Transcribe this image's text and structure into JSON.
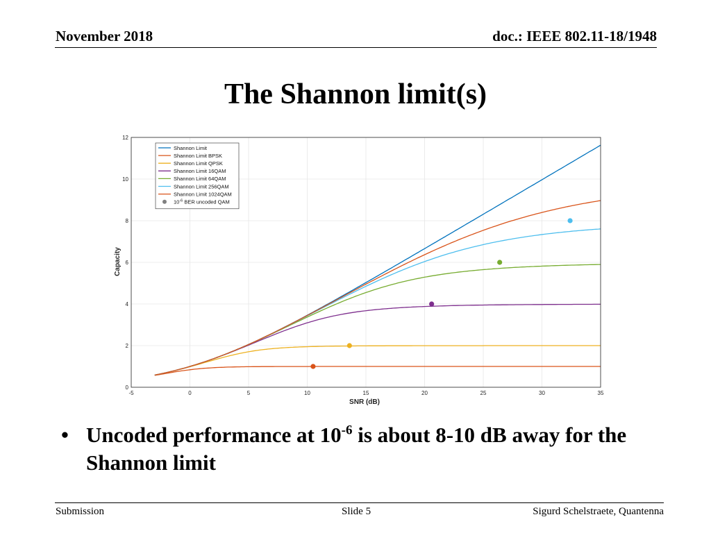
{
  "header": {
    "date": "November 2018",
    "doc": "doc.: IEEE 802.11-18/1948"
  },
  "slide_title": "The Shannon limit(s)",
  "bullet": {
    "symbol": "•",
    "text_before": "Uncoded performance at 10",
    "superscript": "-6",
    "text_after": " is about 8-10 dB away for the Shannon limit"
  },
  "footer": {
    "left": "Submission",
    "center": "Slide 5",
    "right": "Sigurd Schelstraete, Quantenna"
  },
  "colors": {
    "shannon": "#0072BD",
    "bpsk": "#D95319",
    "qpsk": "#EDB120",
    "qam16": "#7E2F8E",
    "qam64": "#77AC30",
    "qam256": "#4DBEEE",
    "qam1024": "#D95319",
    "marker": "#808080"
  },
  "chart_data": {
    "type": "line",
    "xlabel": "SNR (dB)",
    "ylabel": "Capacity",
    "xlim": [
      -5,
      35
    ],
    "ylim": [
      0,
      12
    ],
    "xticks": [
      -5,
      0,
      5,
      10,
      15,
      20,
      25,
      30,
      35
    ],
    "yticks": [
      0,
      2,
      4,
      6,
      8,
      10,
      12
    ],
    "grid": true,
    "legend_position": "top-left",
    "series": [
      {
        "name": "Shannon Limit",
        "kind": "shannon",
        "color": "#0072BD"
      },
      {
        "name": "Shannon Limit BPSK",
        "kind": "qam",
        "bits": 1,
        "color": "#D95319"
      },
      {
        "name": "Shannon Limit QPSK",
        "kind": "qam",
        "bits": 2,
        "color": "#EDB120"
      },
      {
        "name": "Shannon Limit 16QAM",
        "kind": "qam",
        "bits": 4,
        "color": "#7E2F8E"
      },
      {
        "name": "Shannon Limit 64QAM",
        "kind": "qam",
        "bits": 6,
        "color": "#77AC30"
      },
      {
        "name": "Shannon Limit 256QAM",
        "kind": "qam",
        "bits": 8,
        "color": "#4DBEEE"
      },
      {
        "name": "Shannon Limit 1024QAM",
        "kind": "qam",
        "bits": 10,
        "color": "#D95319"
      }
    ],
    "marker_series": {
      "name_prefix": "10",
      "name_superscript": "-6",
      "name_suffix": " BER uncoded QAM",
      "color": "#808080",
      "points": [
        {
          "x": 10.5,
          "y": 1,
          "color": "#D95319"
        },
        {
          "x": 13.6,
          "y": 2,
          "color": "#EDB120"
        },
        {
          "x": 20.6,
          "y": 4,
          "color": "#7E2F8E"
        },
        {
          "x": 26.4,
          "y": 6,
          "color": "#77AC30"
        },
        {
          "x": 32.4,
          "y": 8,
          "color": "#4DBEEE"
        }
      ]
    },
    "sample_range": [
      -3,
      35
    ]
  }
}
